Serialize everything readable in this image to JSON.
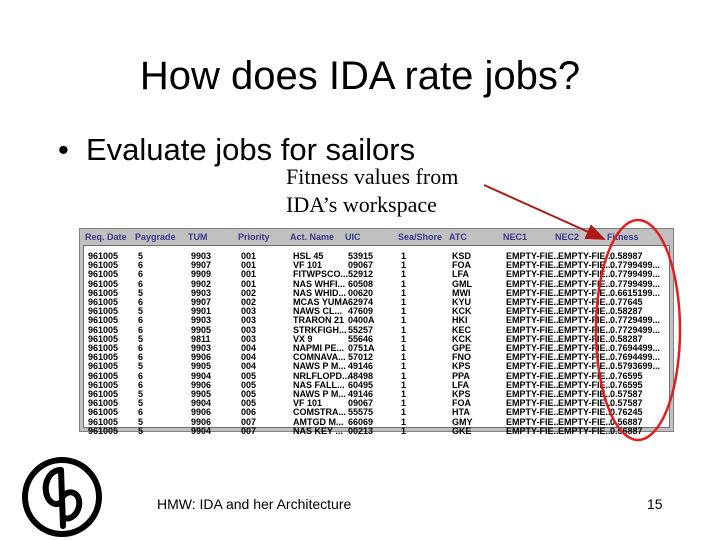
{
  "slide": {
    "title": "How does IDA rate jobs?",
    "bullet": "Evaluate jobs for sailors",
    "bullet_marker": "•",
    "callout_line1": "Fitness values from",
    "callout_line2": "IDA’s workspace",
    "footer": "HMW: IDA and her Architecture",
    "page_number": "15"
  },
  "table": {
    "columns": [
      "Req. Date",
      "Paygrade",
      "TUM",
      "Priority",
      "Act. Name",
      "UIC",
      "Sea/Shore",
      "ATC",
      "NEC1",
      "NEC2",
      "Fitness"
    ],
    "rows": [
      [
        "961005",
        "5",
        "9903",
        "001",
        "HSL 45",
        "53915",
        "1",
        "KSD",
        "EMPTY-FIE...",
        "EMPTY-FIE...",
        "0.58987"
      ],
      [
        "961005",
        "6",
        "9907",
        "001",
        "VF 101",
        "09067",
        "1",
        "FOA",
        "EMPTY-FIE...",
        "EMPTY-FIE...",
        "0.7799499..."
      ],
      [
        "961005",
        "6",
        "9909",
        "001",
        "FITWPSCO...",
        "52912",
        "1",
        "LFA",
        "EMPTY-FIE...",
        "EMPTY-FIE...",
        "0.7799499..."
      ],
      [
        "961005",
        "6",
        "9902",
        "001",
        "NAS WHFI...",
        "60508",
        "1",
        "GML",
        "EMPTY-FIE...",
        "EMPTY-FIE...",
        "0.7799499..."
      ],
      [
        "961005",
        "5",
        "9903",
        "002",
        "NAS WHID...",
        "00620",
        "1",
        "MWI",
        "EMPTY-FIE...",
        "EMPTY-FIE...",
        "0.6615199..."
      ],
      [
        "961005",
        "6",
        "9907",
        "002",
        "MCAS YUMA",
        "62974",
        "1",
        "KYU",
        "EMPTY-FIE...",
        "EMPTY-FIE...",
        "0.77645"
      ],
      [
        "961005",
        "5",
        "9901",
        "003",
        "NAWS CL...",
        "47609",
        "1",
        "KCK",
        "EMPTY-FIE...",
        "EMPTY-FIE...",
        "0.58287"
      ],
      [
        "961005",
        "6",
        "9903",
        "003",
        "TRARON 21",
        "0400A",
        "1",
        "HKI",
        "EMPTY-FIE...",
        "EMPTY-FIE...",
        "0.7729499..."
      ],
      [
        "961005",
        "6",
        "9905",
        "003",
        "STRKFIGH...",
        "55257",
        "1",
        "KEC",
        "EMPTY-FIE...",
        "EMPTY-FIE...",
        "0.7729499..."
      ],
      [
        "961005",
        "5",
        "9811",
        "003",
        "VX 9",
        "55646",
        "1",
        "KCK",
        "EMPTY-FIE...",
        "EMPTY-FIE...",
        "0.58287"
      ],
      [
        "961005",
        "6",
        "9903",
        "004",
        "NAPMI PE...",
        "0751A",
        "1",
        "GPE",
        "EMPTY-FIE...",
        "EMPTY-FIE...",
        "0.7694499..."
      ],
      [
        "961005",
        "6",
        "9906",
        "004",
        "COMNAVA...",
        "57012",
        "1",
        "FNO",
        "EMPTY-FIE...",
        "EMPTY-FIE...",
        "0.7694499..."
      ],
      [
        "961005",
        "5",
        "9905",
        "004",
        "NAWS P M...",
        "49146",
        "1",
        "KPS",
        "EMPTY-FIE...",
        "EMPTY-FIE...",
        "0.5793699..."
      ],
      [
        "961005",
        "6",
        "9904",
        "005",
        "NRLFLOPD...",
        "48498",
        "1",
        "PPA",
        "EMPTY-FIE...",
        "EMPTY-FIE...",
        "0.76595"
      ],
      [
        "961005",
        "6",
        "9906",
        "005",
        "NAS FALL...",
        "60495",
        "1",
        "LFA",
        "EMPTY-FIE...",
        "EMPTY-FIE...",
        "0.76595"
      ],
      [
        "961005",
        "5",
        "9905",
        "005",
        "NAWS P M...",
        "49146",
        "1",
        "KPS",
        "EMPTY-FIE...",
        "EMPTY-FIE...",
        "0.57587"
      ],
      [
        "961005",
        "5",
        "9904",
        "005",
        "VF 101",
        "09067",
        "1",
        "FOA",
        "EMPTY-FIE...",
        "EMPTY-FIE...",
        "0.57587"
      ],
      [
        "961005",
        "6",
        "9906",
        "006",
        "COMSTRA...",
        "55575",
        "1",
        "HTA",
        "EMPTY-FIE...",
        "EMPTY-FIE...",
        "0.76245"
      ],
      [
        "961005",
        "5",
        "9906",
        "007",
        "AMTGD M...",
        "66069",
        "1",
        "GMY",
        "EMPTY-FIE...",
        "EMPTY-FIE...",
        "0.56887"
      ],
      [
        "961005",
        "5",
        "9904",
        "007",
        "NAS KEY ...",
        "00213",
        "1",
        "GKE",
        "EMPTY-FIE...",
        "EMPTY-FIE...",
        "0.56887"
      ]
    ]
  },
  "colors": {
    "header_text": "#3a3a8c",
    "ellipse": "#e02020",
    "arrow": "#b01818"
  }
}
